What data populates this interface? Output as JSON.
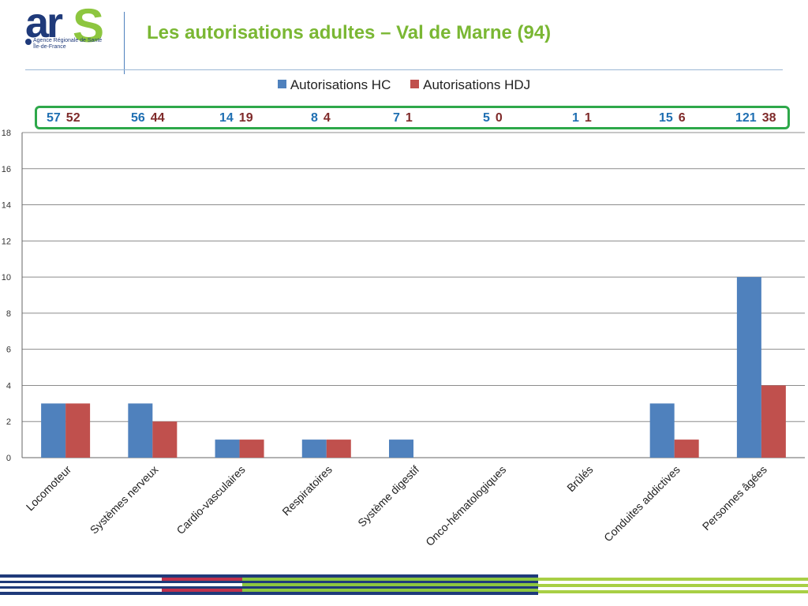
{
  "header": {
    "title": "Les autorisations adultes – Val de Marne (94)",
    "logo": {
      "letters": "ar",
      "s": "S",
      "subtitle": "Agence Régionale de Santé\nÎle-de-France"
    }
  },
  "totals": [
    {
      "category": "Locomoteur",
      "hc": "57",
      "hdj": "52"
    },
    {
      "category": "Systèmes nerveux",
      "hc": "56",
      "hdj": "44"
    },
    {
      "category": "Cardio-vasculaires",
      "hc": "14",
      "hdj": "19"
    },
    {
      "category": "Respiratoires",
      "hc": "8",
      "hdj": "4"
    },
    {
      "category": "Système digestif",
      "hc": "7",
      "hdj": "1"
    },
    {
      "category": "Onco-hématologiques",
      "hc": "5",
      "hdj": "0"
    },
    {
      "category": "Brûlés",
      "hc": "1",
      "hdj": "1"
    },
    {
      "category": "Conduites addictives",
      "hc": "15",
      "hdj": "6"
    },
    {
      "category": "Personnes âgées",
      "hc": "121",
      "hdj": "38"
    }
  ],
  "colors": {
    "hc": "#4f81bd",
    "hdj": "#c0504d",
    "title": "#7ab733",
    "totals_border": "#2ea84a"
  },
  "chart_data": {
    "type": "bar",
    "title": "",
    "xlabel": "",
    "ylabel": "",
    "categories": [
      "Locomoteur",
      "Systèmes nerveux",
      "Cardio-vasculaires",
      "Respiratoires",
      "Système digestif",
      "Onco-hématologiques",
      "Brûlés",
      "Conduites addictives",
      "Personnes âgées"
    ],
    "series": [
      {
        "name": "Autorisations HC",
        "values": [
          3,
          3,
          1,
          1,
          1,
          0,
          0,
          3,
          10
        ]
      },
      {
        "name": "Autorisations HDJ",
        "values": [
          3,
          2,
          1,
          1,
          0,
          0,
          0,
          1,
          4
        ]
      }
    ],
    "ylim": [
      0,
      18
    ],
    "yticks": [
      0,
      2,
      4,
      6,
      8,
      10,
      12,
      14,
      16,
      18
    ],
    "grid": true,
    "legend": "top"
  }
}
